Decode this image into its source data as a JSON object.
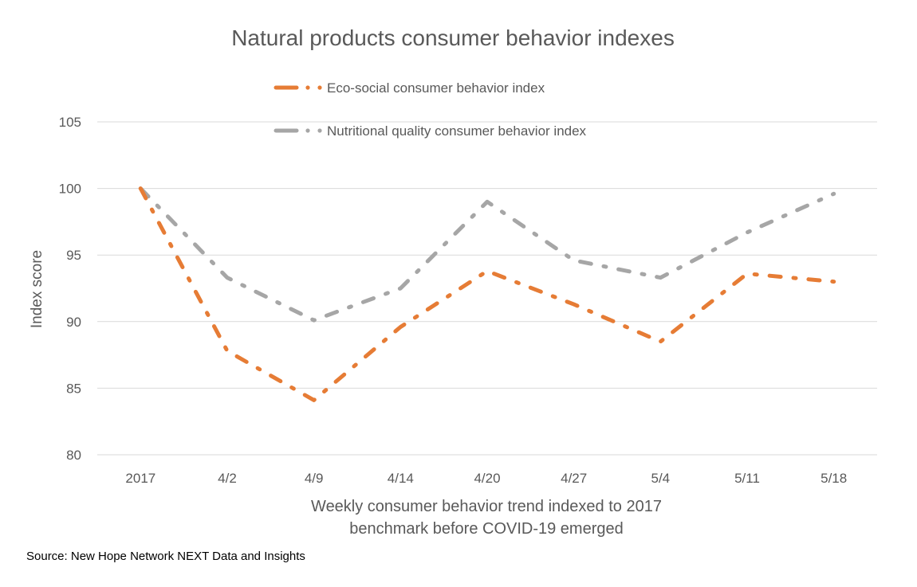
{
  "chart_data": {
    "type": "line",
    "title": "Natural products consumer behavior indexes",
    "xlabel_lines": [
      "Weekly consumer behavior trend indexed to 2017",
      "benchmark before COVID-19 emerged"
    ],
    "ylabel": "Index score",
    "source": "Source: New Hope Network NEXT Data and Insights",
    "ylim": [
      80,
      105
    ],
    "yticks": [
      80,
      85,
      90,
      95,
      100,
      105
    ],
    "categories": [
      "2017",
      "4/2",
      "4/9",
      "4/14",
      "4/20",
      "4/27",
      "5/4",
      "5/11",
      "5/18"
    ],
    "grid": true,
    "legend_position": "top",
    "series": [
      {
        "name": "Eco-social consumer behavior index",
        "color": "#E67C35",
        "values": [
          100,
          87.8,
          84.1,
          89.6,
          93.8,
          91.3,
          88.5,
          93.6,
          93.0
        ]
      },
      {
        "name": "Nutritional quality consumer behavior index",
        "color": "#A6A6A6",
        "values": [
          100,
          93.3,
          90.1,
          92.5,
          99.0,
          94.6,
          93.3,
          96.7,
          99.6
        ]
      }
    ],
    "colors": {
      "grid": "#D9D9D9",
      "text": "#595959",
      "title": "#595959",
      "source": "#000000"
    }
  }
}
